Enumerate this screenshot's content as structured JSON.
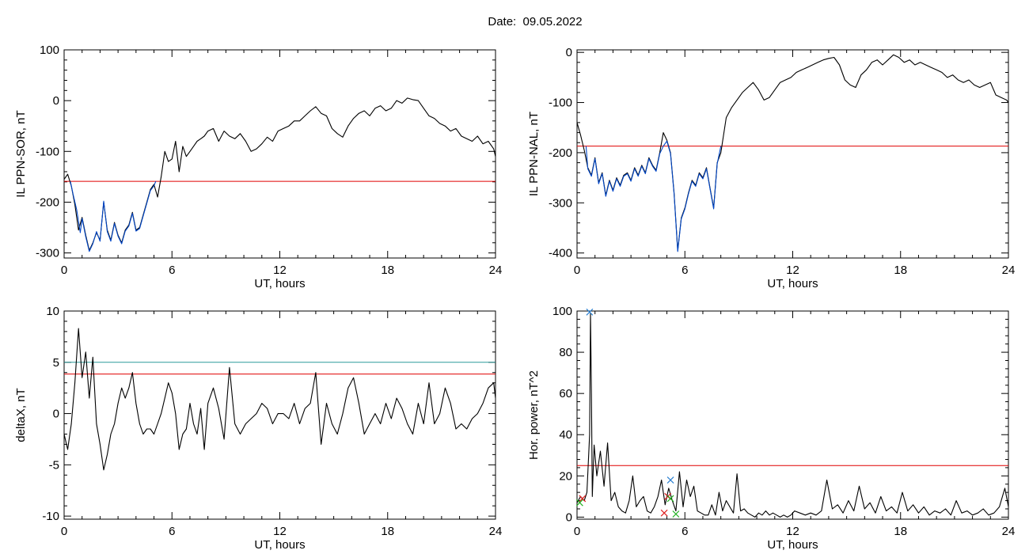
{
  "page": {
    "date_label": "Date:  09.05.2022"
  },
  "colors": {
    "trace": "#000000",
    "highlight": "#0047c8",
    "threshold": "#e00000",
    "threshold2": "#2a9a9a",
    "marker_blue": "#2a7fd0",
    "marker_red": "#e02020",
    "marker_green": "#20b020"
  },
  "chart_data": [
    {
      "id": "il-ppn-sor",
      "type": "line",
      "xlabel": "UT, hours",
      "ylabel": "IL PPN-SOR, nT",
      "xlim": [
        0,
        24
      ],
      "ylim": [
        -310,
        100
      ],
      "xticks": [
        0,
        6,
        12,
        18,
        24
      ],
      "yticks": [
        100,
        0,
        -100,
        -200,
        -300
      ],
      "threshold": -159,
      "series": [
        {
          "style": "trace",
          "x": [
            0,
            0.2,
            0.4,
            0.6,
            0.8,
            1.0,
            1.2,
            1.4,
            1.6,
            1.8,
            2.0,
            2.2,
            2.4,
            2.6,
            2.8,
            3.0,
            3.2,
            3.4,
            3.6,
            3.8,
            4.0,
            4.2,
            4.4,
            4.6,
            4.8,
            5.0,
            5.2,
            5.4,
            5.6,
            5.8,
            6.0,
            6.2,
            6.4,
            6.6,
            6.8,
            7.0,
            7.2,
            7.4,
            7.6,
            7.8,
            8.0,
            8.3,
            8.6,
            8.9,
            9.2,
            9.5,
            9.8,
            10.1,
            10.4,
            10.7,
            11.0,
            11.3,
            11.6,
            11.9,
            12.2,
            12.5,
            12.8,
            13.1,
            13.4,
            13.7,
            14.0,
            14.3,
            14.6,
            14.9,
            15.2,
            15.5,
            15.8,
            16.1,
            16.4,
            16.7,
            17.0,
            17.3,
            17.6,
            17.9,
            18.2,
            18.5,
            18.8,
            19.1,
            19.4,
            19.7,
            20.0,
            20.3,
            20.6,
            20.9,
            21.2,
            21.5,
            21.8,
            22.1,
            22.4,
            22.7,
            23.0,
            23.3,
            23.6,
            23.9,
            24.0
          ],
          "y": [
            -155,
            -145,
            -168,
            -205,
            -255,
            -230,
            -265,
            -295,
            -280,
            -260,
            -275,
            -200,
            -255,
            -275,
            -240,
            -265,
            -280,
            -255,
            -245,
            -220,
            -255,
            -250,
            -225,
            -200,
            -175,
            -165,
            -190,
            -150,
            -100,
            -120,
            -115,
            -80,
            -140,
            -90,
            -110,
            -100,
            -90,
            -80,
            -75,
            -70,
            -60,
            -55,
            -80,
            -60,
            -70,
            -75,
            -65,
            -80,
            -100,
            -95,
            -85,
            -72,
            -80,
            -60,
            -55,
            -50,
            -40,
            -40,
            -30,
            -20,
            -12,
            -25,
            -30,
            -55,
            -65,
            -72,
            -50,
            -35,
            -25,
            -20,
            -30,
            -15,
            -10,
            -20,
            -15,
            0,
            -5,
            5,
            2,
            0,
            -15,
            -30,
            -35,
            -45,
            -50,
            -60,
            -55,
            -70,
            -75,
            -80,
            -70,
            -85,
            -80,
            -95,
            -110
          ]
        },
        {
          "style": "highlight",
          "x": [
            0.35,
            0.5,
            0.7,
            0.9,
            1.0,
            1.2,
            1.4,
            1.6,
            1.8,
            2.0,
            2.2,
            2.4,
            2.6,
            2.8,
            3.0,
            3.2,
            3.4,
            3.6,
            3.8,
            4.0,
            4.2,
            4.4,
            4.6,
            4.8,
            5.0,
            5.1
          ],
          "y": [
            -159,
            -185,
            -215,
            -260,
            -232,
            -268,
            -297,
            -282,
            -258,
            -277,
            -198,
            -258,
            -277,
            -242,
            -267,
            -282,
            -257,
            -247,
            -222,
            -257,
            -252,
            -227,
            -202,
            -177,
            -168,
            -159
          ]
        }
      ]
    },
    {
      "id": "il-ppn-nal",
      "type": "line",
      "xlabel": "UT, hours",
      "ylabel": "IL PPN-NAL, nT",
      "xlim": [
        0,
        24
      ],
      "ylim": [
        -410,
        5
      ],
      "xticks": [
        0,
        6,
        12,
        18,
        24
      ],
      "yticks": [
        0,
        -100,
        -200,
        -300,
        -400
      ],
      "threshold": -187,
      "series": [
        {
          "style": "trace",
          "x": [
            0,
            0.2,
            0.4,
            0.6,
            0.8,
            1.0,
            1.2,
            1.4,
            1.6,
            1.8,
            2.0,
            2.2,
            2.4,
            2.6,
            2.8,
            3.0,
            3.2,
            3.4,
            3.6,
            3.8,
            4.0,
            4.2,
            4.4,
            4.6,
            4.8,
            5.0,
            5.2,
            5.4,
            5.6,
            5.8,
            6.0,
            6.2,
            6.4,
            6.6,
            6.8,
            7.0,
            7.2,
            7.4,
            7.6,
            7.8,
            8.0,
            8.3,
            8.6,
            8.9,
            9.2,
            9.5,
            9.8,
            10.1,
            10.4,
            10.7,
            11.0,
            11.3,
            11.6,
            11.9,
            12.2,
            12.5,
            12.8,
            13.1,
            13.4,
            13.7,
            14.0,
            14.3,
            14.6,
            14.9,
            15.2,
            15.5,
            15.8,
            16.1,
            16.4,
            16.7,
            17.0,
            17.3,
            17.6,
            17.9,
            18.2,
            18.5,
            18.8,
            19.1,
            19.4,
            19.7,
            20.0,
            20.3,
            20.6,
            20.9,
            21.2,
            21.5,
            21.8,
            22.1,
            22.4,
            22.7,
            23.0,
            23.3,
            23.6,
            23.9,
            24.0
          ],
          "y": [
            -140,
            -165,
            -195,
            -230,
            -245,
            -210,
            -260,
            -240,
            -285,
            -255,
            -275,
            -250,
            -265,
            -245,
            -240,
            -255,
            -230,
            -245,
            -225,
            -240,
            -210,
            -225,
            -235,
            -200,
            -160,
            -175,
            -200,
            -280,
            -395,
            -330,
            -310,
            -280,
            -255,
            -265,
            -240,
            -250,
            -230,
            -270,
            -310,
            -220,
            -200,
            -130,
            -110,
            -95,
            -80,
            -70,
            -60,
            -75,
            -95,
            -90,
            -75,
            -60,
            -55,
            -50,
            -40,
            -35,
            -30,
            -25,
            -20,
            -15,
            -12,
            -10,
            -25,
            -55,
            -65,
            -70,
            -45,
            -35,
            -20,
            -15,
            -25,
            -15,
            -5,
            -10,
            -20,
            -15,
            -25,
            -20,
            -25,
            -30,
            -35,
            -40,
            -50,
            -45,
            -55,
            -60,
            -55,
            -65,
            -70,
            -65,
            -60,
            -85,
            -90,
            -95,
            -100
          ]
        },
        {
          "style": "highlight",
          "x": [
            0.5,
            0.6,
            0.8,
            1.0,
            1.2,
            1.4,
            1.6,
            1.8,
            2.0,
            2.2,
            2.4,
            2.6,
            2.8,
            3.0,
            3.2,
            3.4,
            3.6,
            3.8,
            4.0,
            4.2,
            4.4,
            4.6,
            4.8,
            5.0,
            5.2,
            5.4,
            5.6,
            5.8,
            6.0,
            6.2,
            6.4,
            6.6,
            6.8,
            7.0,
            7.2,
            7.4,
            7.6,
            7.8,
            8.0
          ],
          "y": [
            -187,
            -232,
            -247,
            -212,
            -262,
            -242,
            -287,
            -257,
            -277,
            -252,
            -267,
            -247,
            -242,
            -257,
            -232,
            -247,
            -227,
            -242,
            -212,
            -227,
            -237,
            -202,
            -187,
            -177,
            -202,
            -282,
            -397,
            -332,
            -312,
            -282,
            -257,
            -267,
            -242,
            -252,
            -232,
            -272,
            -312,
            -222,
            -187
          ]
        }
      ]
    },
    {
      "id": "deltax",
      "type": "line",
      "xlabel": "UT, hours",
      "ylabel": "deltaX, nT",
      "xlim": [
        0,
        24
      ],
      "ylim": [
        -10.3,
        10
      ],
      "xticks": [
        0,
        6,
        12,
        18,
        24
      ],
      "yticks": [
        10,
        5,
        0,
        -5,
        -10
      ],
      "threshold": 3.85,
      "threshold2": 5,
      "series": [
        {
          "style": "trace",
          "x": [
            0,
            0.2,
            0.4,
            0.6,
            0.8,
            1.0,
            1.2,
            1.4,
            1.6,
            1.8,
            2.0,
            2.2,
            2.4,
            2.6,
            2.8,
            3.0,
            3.2,
            3.4,
            3.6,
            3.8,
            4.0,
            4.2,
            4.4,
            4.6,
            4.8,
            5.0,
            5.2,
            5.4,
            5.6,
            5.8,
            6.0,
            6.2,
            6.4,
            6.6,
            6.8,
            7.0,
            7.2,
            7.4,
            7.6,
            7.8,
            8.0,
            8.3,
            8.6,
            8.9,
            9.2,
            9.5,
            9.8,
            10.1,
            10.4,
            10.7,
            11.0,
            11.3,
            11.6,
            11.9,
            12.2,
            12.5,
            12.8,
            13.1,
            13.4,
            13.7,
            14.0,
            14.3,
            14.6,
            14.9,
            15.2,
            15.5,
            15.8,
            16.1,
            16.4,
            16.7,
            17.0,
            17.3,
            17.6,
            17.9,
            18.2,
            18.5,
            18.8,
            19.1,
            19.4,
            19.7,
            20.0,
            20.3,
            20.6,
            20.9,
            21.2,
            21.5,
            21.8,
            22.1,
            22.4,
            22.7,
            23.0,
            23.3,
            23.6,
            23.9,
            24.0
          ],
          "y": [
            -2,
            -3.5,
            -1,
            3,
            8.3,
            3.5,
            6,
            1.5,
            5.5,
            -1,
            -3,
            -5.5,
            -4,
            -2,
            -1,
            1,
            2.5,
            1.5,
            2.5,
            4,
            1,
            -1,
            -2,
            -1.5,
            -1.5,
            -2,
            -1,
            0,
            1.5,
            3,
            2,
            0,
            -3.5,
            -2,
            -1.5,
            1,
            -1,
            -2,
            0.5,
            -3.5,
            1,
            2.5,
            0.5,
            -2.5,
            4.5,
            -1,
            -2,
            -1,
            -0.5,
            0,
            1,
            0.5,
            -1,
            0,
            0,
            -0.5,
            1,
            -1,
            0.5,
            1,
            4,
            -3,
            1,
            -1,
            -2,
            0,
            2.5,
            3.5,
            1,
            -2,
            -1,
            0,
            -1,
            1,
            -0.5,
            1.5,
            0.5,
            -1,
            -2,
            1,
            -1,
            3,
            -1,
            0,
            2.5,
            1,
            -1.5,
            -1,
            -1.5,
            -0.5,
            0,
            1,
            2.5,
            3,
            1.5
          ]
        }
      ]
    },
    {
      "id": "hor-power",
      "type": "line",
      "xlabel": "UT, hours",
      "ylabel": "Hor. power, nT^2",
      "xlim": [
        0,
        24
      ],
      "ylim": [
        -1,
        100
      ],
      "xticks": [
        0,
        6,
        12,
        18,
        24
      ],
      "yticks": [
        100,
        80,
        60,
        40,
        20,
        0
      ],
      "threshold": 25,
      "series": [
        {
          "style": "trace",
          "x": [
            0,
            0.2,
            0.4,
            0.55,
            0.7,
            0.75,
            0.8,
            0.85,
            0.95,
            1.1,
            1.3,
            1.5,
            1.7,
            1.9,
            2.1,
            2.3,
            2.5,
            2.7,
            2.9,
            3.1,
            3.3,
            3.5,
            3.7,
            3.9,
            4.1,
            4.3,
            4.5,
            4.7,
            4.9,
            5.1,
            5.3,
            5.5,
            5.7,
            5.9,
            6.1,
            6.3,
            6.5,
            6.7,
            6.9,
            7.1,
            7.3,
            7.5,
            7.7,
            7.9,
            8.1,
            8.3,
            8.5,
            8.7,
            8.9,
            9.1,
            9.3,
            9.5,
            9.7,
            9.9,
            10.1,
            10.3,
            10.5,
            10.7,
            10.9,
            11.1,
            11.3,
            11.5,
            11.7,
            11.9,
            12.1,
            12.4,
            12.7,
            13.0,
            13.3,
            13.6,
            13.9,
            14.2,
            14.5,
            14.8,
            15.1,
            15.4,
            15.7,
            16.0,
            16.3,
            16.6,
            16.9,
            17.2,
            17.5,
            17.8,
            18.1,
            18.4,
            18.7,
            19.0,
            19.3,
            19.6,
            19.9,
            20.2,
            20.5,
            20.8,
            21.1,
            21.4,
            21.7,
            22.0,
            22.3,
            22.6,
            22.9,
            23.2,
            23.5,
            23.8,
            24.0
          ],
          "y": [
            7,
            10,
            8,
            12,
            40,
            99,
            60,
            10,
            35,
            20,
            32,
            15,
            36,
            8,
            12,
            5,
            3,
            2,
            8,
            20,
            5,
            8,
            10,
            3,
            2,
            5,
            10,
            18,
            6,
            14,
            8,
            3,
            22,
            5,
            18,
            10,
            15,
            3,
            2,
            1,
            1,
            6,
            1,
            12,
            3,
            8,
            5,
            2,
            21,
            3,
            4,
            2,
            1,
            0,
            2,
            1,
            3,
            1,
            2,
            1,
            0,
            1,
            0,
            1,
            3,
            2,
            1,
            2,
            1,
            3,
            18,
            4,
            6,
            2,
            8,
            3,
            15,
            4,
            7,
            2,
            10,
            3,
            5,
            2,
            12,
            3,
            6,
            2,
            5,
            1,
            3,
            2,
            4,
            1,
            8,
            2,
            3,
            1,
            2,
            4,
            1,
            2,
            5,
            14,
            5
          ]
        }
      ],
      "markers": [
        {
          "x": 0.7,
          "y": 99.5,
          "color": "marker_blue"
        },
        {
          "x": 5.2,
          "y": 18,
          "color": "marker_blue"
        },
        {
          "x": 0.3,
          "y": 9,
          "color": "marker_red"
        },
        {
          "x": 5.05,
          "y": 10,
          "color": "marker_red"
        },
        {
          "x": 4.85,
          "y": 2,
          "color": "marker_red"
        },
        {
          "x": 0.15,
          "y": 7,
          "color": "marker_green"
        },
        {
          "x": 5.5,
          "y": 1.5,
          "color": "marker_green"
        },
        {
          "x": 5.2,
          "y": 9,
          "color": "marker_green"
        }
      ]
    }
  ]
}
